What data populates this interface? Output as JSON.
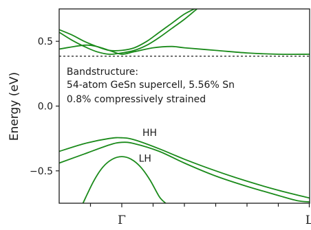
{
  "chart_data": {
    "type": "line",
    "title": "",
    "xlabel": "",
    "ylabel": "Energy (eV)",
    "ylim": [
      -0.75,
      0.75
    ],
    "xlim": [
      -1.0,
      3.0
    ],
    "y_ticks": [
      0.5,
      0.0,
      -0.5
    ],
    "y_tick_labels": [
      "0.5",
      "0.0",
      "−0.5"
    ],
    "x_ticks": [
      0,
      3
    ],
    "x_tick_labels": [
      "Γ",
      "L"
    ],
    "fermi_level": 0.385,
    "annotations": [
      {
        "text": "Bandstructure:",
        "x": -0.88,
        "y": 0.24
      },
      {
        "text": "54-atom GeSn supercell, 5.56% Sn",
        "x": -0.88,
        "y": 0.14
      },
      {
        "text": "0.8% compressively strained",
        "x": -0.88,
        "y": 0.03
      },
      {
        "text": "HH",
        "x": 0.33,
        "y": -0.23
      },
      {
        "text": "LH",
        "x": 0.27,
        "y": -0.43
      }
    ],
    "series": [
      {
        "x": [
          -1.0,
          -0.8,
          -0.6,
          -0.4,
          -0.2,
          0.0,
          0.2,
          0.4,
          0.6,
          0.8,
          1.0,
          1.2
        ],
        "values": [
          0.59,
          0.55,
          0.5,
          0.46,
          0.43,
          0.43,
          0.45,
          0.5,
          0.57,
          0.64,
          0.71,
          0.76
        ]
      },
      {
        "x": [
          -1.0,
          -0.8,
          -0.6,
          -0.4,
          -0.2,
          0.0,
          0.2,
          0.4,
          0.6,
          0.8,
          1.0,
          1.2
        ],
        "values": [
          0.57,
          0.51,
          0.46,
          0.42,
          0.4,
          0.41,
          0.43,
          0.47,
          0.53,
          0.6,
          0.67,
          0.75
        ]
      },
      {
        "x": [
          -1.0,
          -0.6,
          -0.4,
          -0.2,
          0.0,
          0.2,
          0.5,
          0.8,
          1.0,
          1.5,
          2.0,
          2.5,
          3.0
        ],
        "values": [
          0.44,
          0.47,
          0.46,
          0.43,
          0.4,
          0.42,
          0.45,
          0.46,
          0.45,
          0.43,
          0.41,
          0.4,
          0.4
        ]
      },
      {
        "x": [
          -1.0,
          -0.6,
          -0.2,
          0.0,
          0.2,
          0.6,
          1.0,
          1.5,
          2.0,
          2.5,
          3.0
        ],
        "values": [
          -0.35,
          -0.29,
          -0.25,
          -0.245,
          -0.26,
          -0.33,
          -0.41,
          -0.5,
          -0.58,
          -0.65,
          -0.71
        ]
      },
      {
        "x": [
          -1.0,
          -0.6,
          -0.2,
          0.0,
          0.2,
          0.6,
          1.0,
          1.5,
          2.0,
          2.5,
          2.8,
          3.0
        ],
        "values": [
          -0.44,
          -0.37,
          -0.3,
          -0.28,
          -0.29,
          -0.35,
          -0.44,
          -0.54,
          -0.62,
          -0.69,
          -0.73,
          -0.74
        ]
      },
      {
        "x": [
          -0.62,
          -0.45,
          -0.3,
          -0.15,
          0.0,
          0.15,
          0.3,
          0.45,
          0.6,
          0.7
        ],
        "values": [
          -0.75,
          -0.58,
          -0.47,
          -0.41,
          -0.39,
          -0.41,
          -0.47,
          -0.57,
          -0.7,
          -0.75
        ]
      }
    ],
    "colors": {
      "bands": "#1a8a1a",
      "axis": "#1a1a1a",
      "fermi": "#1a1a1a"
    }
  }
}
